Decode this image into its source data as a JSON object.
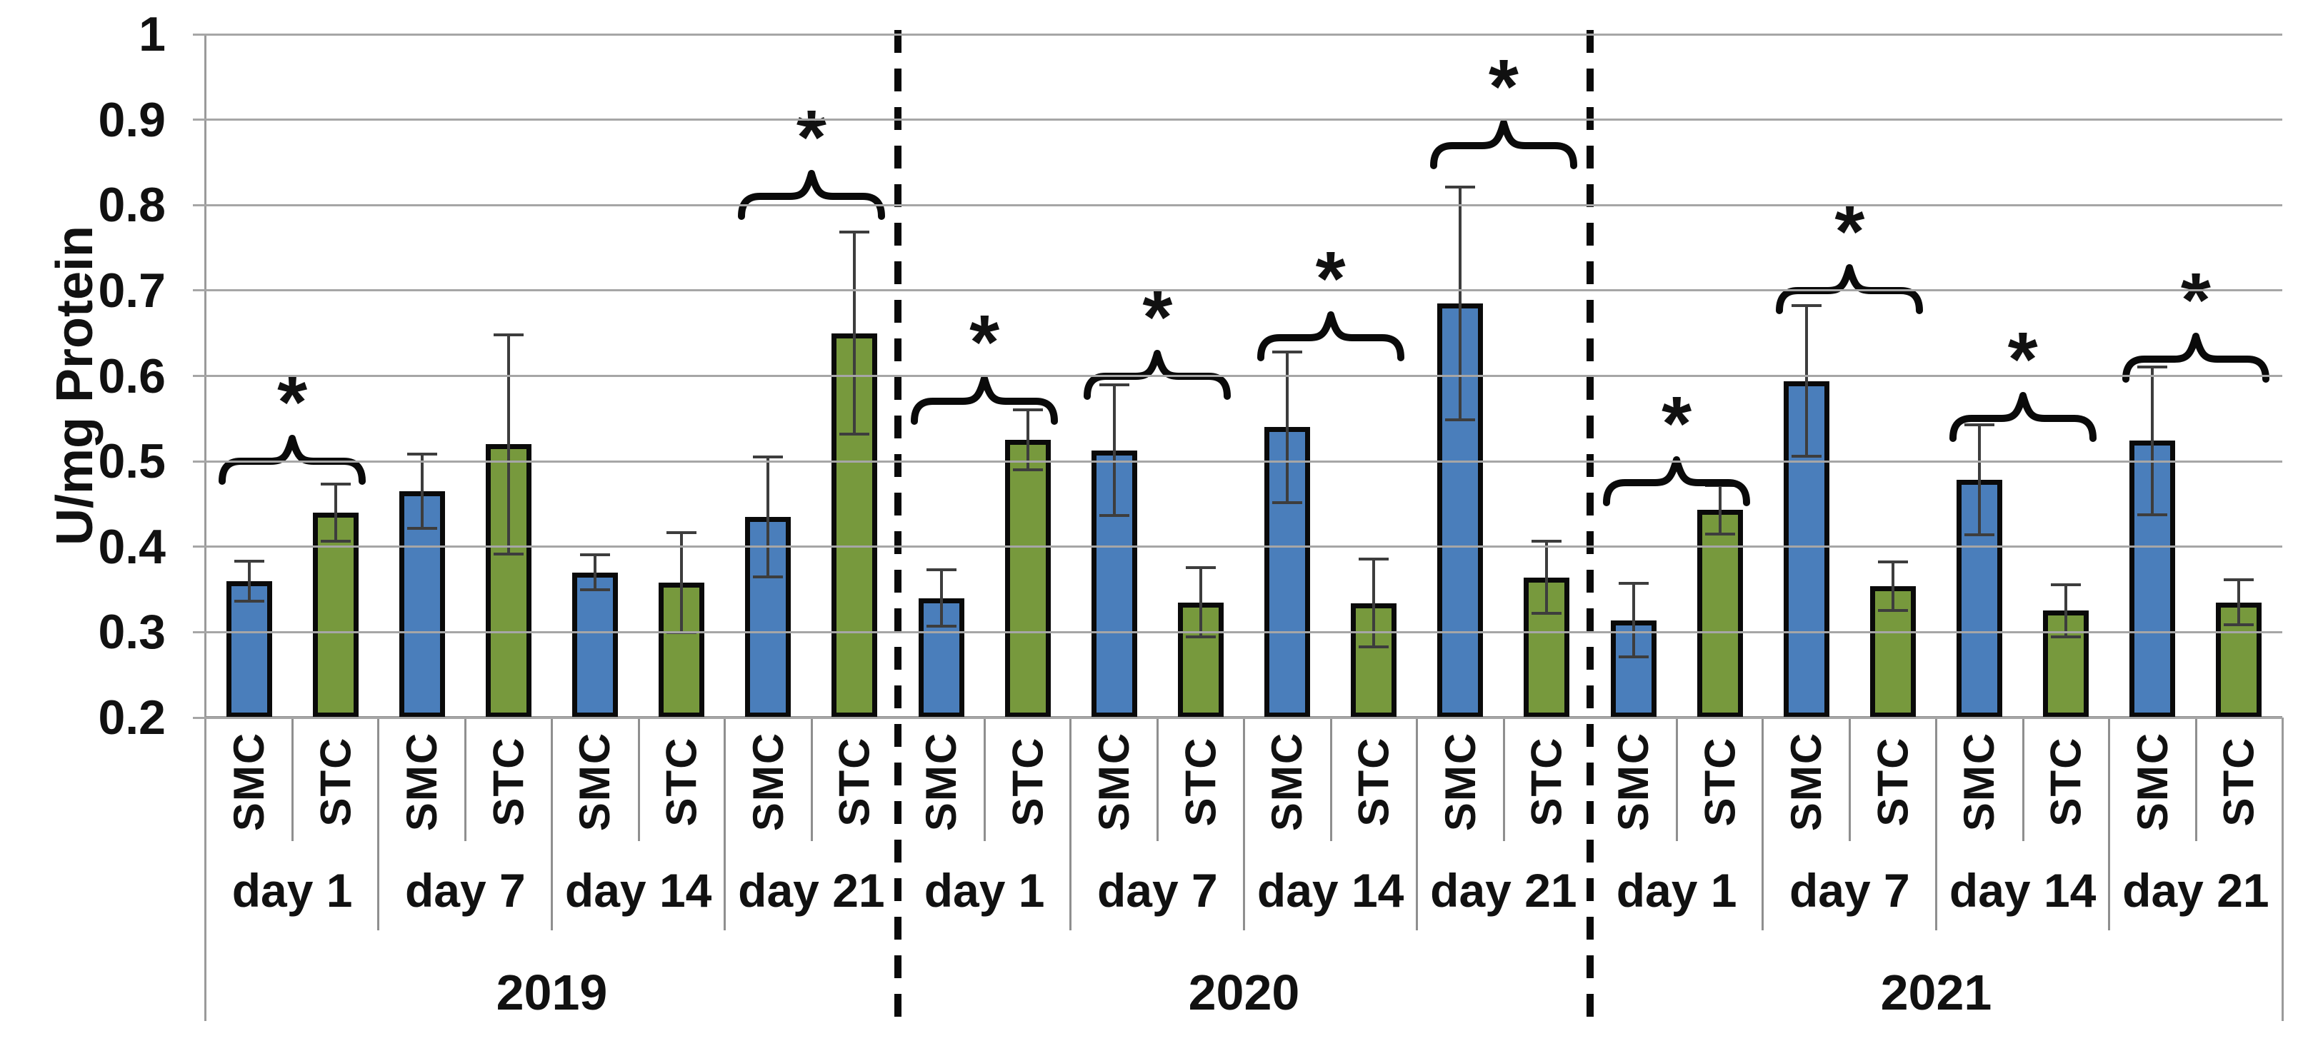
{
  "chart_data": {
    "type": "bar",
    "title": "",
    "ylabel": "U/mg Protein",
    "ylim": [
      0.2,
      1.0
    ],
    "yticks": [
      {
        "label": "1",
        "value": 1.0
      },
      {
        "label": "0.9",
        "value": 0.9
      },
      {
        "label": "0.8",
        "value": 0.8
      },
      {
        "label": "0.7",
        "value": 0.7
      },
      {
        "label": "0.6",
        "value": 0.6
      },
      {
        "label": "0.5",
        "value": 0.5
      },
      {
        "label": "0.4",
        "value": 0.4
      },
      {
        "label": "0.3",
        "value": 0.3
      },
      {
        "label": "0.2",
        "value": 0.2
      }
    ],
    "grid": true,
    "legend_position": "none",
    "significance_marker": "*",
    "series_labels": [
      "SMC",
      "STC"
    ],
    "colors": {
      "SMC": "#4A7EBB",
      "STC": "#77993D",
      "bar_border": "#0A0A0A",
      "gridline": "#A6A6A6",
      "error_bar": "#3D3D3D",
      "separator_dashed": "#0A0A0A"
    },
    "years": [
      {
        "label": "2019",
        "days": [
          {
            "label": "day 1",
            "SMC": {
              "value": 0.36,
              "err": 0.025
            },
            "STC": {
              "value": 0.44,
              "err": 0.035
            },
            "sig": {
              "show": true,
              "y": 0.5
            }
          },
          {
            "label": "day 7",
            "SMC": {
              "value": 0.465,
              "err": 0.045
            },
            "STC": {
              "value": 0.52,
              "err": 0.13
            },
            "sig": {
              "show": false,
              "y": 0
            }
          },
          {
            "label": "day 14",
            "SMC": {
              "value": 0.37,
              "err": 0.022
            },
            "STC": {
              "value": 0.358,
              "err": 0.06
            },
            "sig": {
              "show": false,
              "y": 0
            }
          },
          {
            "label": "day 21",
            "SMC": {
              "value": 0.435,
              "err": 0.072
            },
            "STC": {
              "value": 0.65,
              "err": 0.12
            },
            "sig": {
              "show": true,
              "y": 0.81
            }
          }
        ]
      },
      {
        "label": "2020",
        "days": [
          {
            "label": "day 1",
            "SMC": {
              "value": 0.34,
              "err": 0.035
            },
            "STC": {
              "value": 0.525,
              "err": 0.037
            },
            "sig": {
              "show": true,
              "y": 0.57
            }
          },
          {
            "label": "day 7",
            "SMC": {
              "value": 0.513,
              "err": 0.078
            },
            "STC": {
              "value": 0.335,
              "err": 0.042
            },
            "sig": {
              "show": true,
              "y": 0.6
            }
          },
          {
            "label": "day 14",
            "SMC": {
              "value": 0.54,
              "err": 0.09
            },
            "STC": {
              "value": 0.334,
              "err": 0.053
            },
            "sig": {
              "show": true,
              "y": 0.645
            }
          },
          {
            "label": "day 21",
            "SMC": {
              "value": 0.685,
              "err": 0.138
            },
            "STC": {
              "value": 0.364,
              "err": 0.044
            },
            "sig": {
              "show": true,
              "y": 0.87
            }
          }
        ]
      },
      {
        "label": "2021",
        "days": [
          {
            "label": "day 1",
            "SMC": {
              "value": 0.314,
              "err": 0.045
            },
            "STC": {
              "value": 0.443,
              "err": 0.03
            },
            "sig": {
              "show": true,
              "y": 0.475
            }
          },
          {
            "label": "day 7",
            "SMC": {
              "value": 0.594,
              "err": 0.09
            },
            "STC": {
              "value": 0.354,
              "err": 0.03
            },
            "sig": {
              "show": true,
              "y": 0.7
            }
          },
          {
            "label": "day 14",
            "SMC": {
              "value": 0.478,
              "err": 0.066
            },
            "STC": {
              "value": 0.325,
              "err": 0.032
            },
            "sig": {
              "show": true,
              "y": 0.55
            }
          },
          {
            "label": "day 21",
            "SMC": {
              "value": 0.524,
              "err": 0.088
            },
            "STC": {
              "value": 0.335,
              "err": 0.028
            },
            "sig": {
              "show": true,
              "y": 0.62
            }
          }
        ]
      }
    ]
  }
}
